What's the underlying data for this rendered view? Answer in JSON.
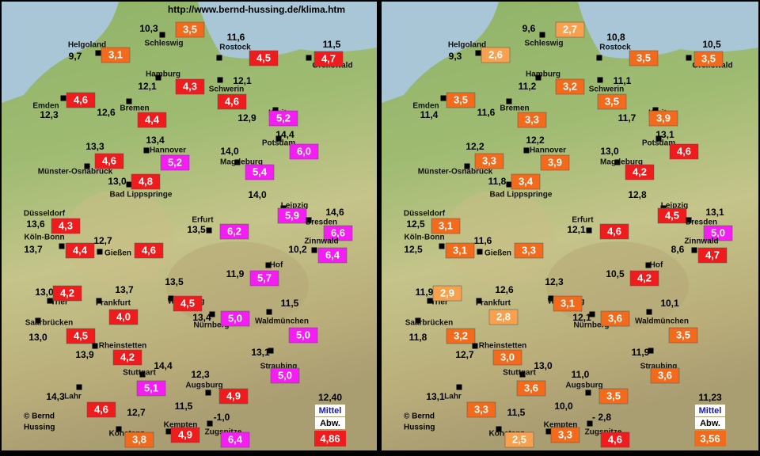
{
  "header": {
    "url": "http://www.bernd-hussing.de/klima.htm"
  },
  "panels": [
    {
      "stations": [
        {
          "name": "Schleswig",
          "temp": "10,3",
          "anomaly": "3,5",
          "color": "#f26b1d"
        },
        {
          "name": "Helgoland",
          "temp": "9,7",
          "anomaly": "3,1",
          "color": "#f26b1d"
        },
        {
          "name": "Rostock",
          "temp": "11,6",
          "anomaly": "4,5",
          "color": "#ee1c1c"
        },
        {
          "name": "Greifswald",
          "temp": "11,5",
          "anomaly": "4,7",
          "color": "#ee1c1c"
        },
        {
          "name": "Hamburg",
          "temp": "12,1",
          "anomaly": "4,3",
          "color": "#ee1c1c"
        },
        {
          "name": "Schwerin",
          "temp": "12,1",
          "anomaly": "4,6",
          "color": "#ee1c1c"
        },
        {
          "name": "Emden",
          "temp": "12,3",
          "anomaly": "4,6",
          "color": "#ee1c1c"
        },
        {
          "name": "Bremen",
          "temp": "12,6",
          "anomaly": "4,4",
          "color": "#ee1c1c"
        },
        {
          "name": "Kyritz",
          "temp": "12,9",
          "anomaly": "5,2",
          "color": "#f21ef2"
        },
        {
          "name": "Potsdam",
          "temp": "14,4",
          "anomaly": "6,0",
          "color": "#f21ef2"
        },
        {
          "name": "Hannover",
          "temp": "13,4",
          "anomaly": "5,2",
          "color": "#f21ef2"
        },
        {
          "name": "Münster-Osnabrück",
          "temp": "13,3",
          "anomaly": "4,6",
          "color": "#ee1c1c"
        },
        {
          "name": "Magdeburg",
          "temp": "14,0",
          "anomaly": "5,4",
          "color": "#f21ef2"
        },
        {
          "name": "Bad Lippspringe",
          "temp": "13,0",
          "anomaly": "4,8",
          "color": "#ee1c1c"
        },
        {
          "name": "Leipzig",
          "temp": "14,0",
          "anomaly": "5,9",
          "color": "#f21ef2"
        },
        {
          "name": "Dresden",
          "temp": "14,6",
          "anomaly": "6,6",
          "color": "#f21ef2"
        },
        {
          "name": "Düsseldorf",
          "temp": "13,6",
          "anomaly": "4,3",
          "color": "#ee1c1c"
        },
        {
          "name": "Erfurt",
          "temp": "13,5",
          "anomaly": "6,2",
          "color": "#f21ef2"
        },
        {
          "name": "Köln-Bonn",
          "temp": "13,7",
          "anomaly": "4,4",
          "color": "#ee1c1c"
        },
        {
          "name": "Gießen",
          "temp": "12,7",
          "anomaly": "4,6",
          "color": "#ee1c1c"
        },
        {
          "name": "Zinnwald",
          "temp": "10,2",
          "anomaly": "6,4",
          "color": "#f21ef2"
        },
        {
          "name": "Hof",
          "temp": "11,9",
          "anomaly": "5,7",
          "color": "#f21ef2"
        },
        {
          "name": "Trier",
          "temp": "13,0",
          "anomaly": "4,2",
          "color": "#ee1c1c"
        },
        {
          "name": "Frankfurt",
          "temp": "13,7",
          "anomaly": "4,0",
          "color": "#ee1c1c"
        },
        {
          "name": "Würzburg",
          "temp": "13,5",
          "anomaly": "4,5",
          "color": "#ee1c1c"
        },
        {
          "name": "Nürnberg",
          "temp": "13,4",
          "anomaly": "5,0",
          "color": "#f21ef2"
        },
        {
          "name": "Waldmünchen",
          "temp": "11,5",
          "anomaly": "5,0",
          "color": "#f21ef2"
        },
        {
          "name": "Saarbrücken",
          "temp": "13,0",
          "anomaly": "4,5",
          "color": "#ee1c1c"
        },
        {
          "name": "Rheinstetten",
          "temp": "13,9",
          "anomaly": "4,2",
          "color": "#ee1c1c"
        },
        {
          "name": "Stuttgart",
          "temp": "14,4",
          "anomaly": "5,1",
          "color": "#f21ef2"
        },
        {
          "name": "Straubing",
          "temp": "13,1",
          "anomaly": "5,0",
          "color": "#f21ef2"
        },
        {
          "name": "Augsburg",
          "temp": "12,3",
          "anomaly": "4,9",
          "color": "#ee1c1c"
        },
        {
          "name": "Lahr",
          "temp": "14,3",
          "anomaly": "4,6",
          "color": "#ee1c1c"
        },
        {
          "name": "Konstanz",
          "temp": "12,7",
          "anomaly": "3,8",
          "color": "#f26b1d"
        },
        {
          "name": "Kempten",
          "temp": "11,5",
          "anomaly": "4,9",
          "color": "#ee1c1c"
        },
        {
          "name": "Zugspitze",
          "temp": "-1,0",
          "anomaly": "6,4",
          "color": "#f21ef2"
        }
      ],
      "mean": {
        "temp": "12,40",
        "label": "Mittel",
        "abw_label": "Abw.",
        "anomaly": "4,86",
        "color": "#ee1c1c"
      },
      "credit": [
        "© Bernd",
        "Hussing"
      ]
    },
    {
      "stations": [
        {
          "name": "Schleswig",
          "temp": "9,6",
          "anomaly": "2,7",
          "color": "#f7a04e"
        },
        {
          "name": "Helgoland",
          "temp": "9,3",
          "anomaly": "2,6",
          "color": "#f7a04e"
        },
        {
          "name": "Rostock",
          "temp": "10,8",
          "anomaly": "3,5",
          "color": "#f26b1d"
        },
        {
          "name": "Greifswald",
          "temp": "10,5",
          "anomaly": "3,5",
          "color": "#f26b1d"
        },
        {
          "name": "Hamburg",
          "temp": "11,2",
          "anomaly": "3,2",
          "color": "#f26b1d"
        },
        {
          "name": "Schwerin",
          "temp": "11,1",
          "anomaly": "3,5",
          "color": "#f26b1d"
        },
        {
          "name": "Emden",
          "temp": "11,4",
          "anomaly": "3,5",
          "color": "#f26b1d"
        },
        {
          "name": "Bremen",
          "temp": "11,6",
          "anomaly": "3,3",
          "color": "#f26b1d"
        },
        {
          "name": "Kyritz",
          "temp": "11,7",
          "anomaly": "3,9",
          "color": "#f26b1d"
        },
        {
          "name": "Potsdam",
          "temp": "13,1",
          "anomaly": "4,6",
          "color": "#ee1c1c"
        },
        {
          "name": "Hannover",
          "temp": "12,2",
          "anomaly": "3,9",
          "color": "#f26b1d"
        },
        {
          "name": "Münster-Osnabrück",
          "temp": "12,2",
          "anomaly": "3,3",
          "color": "#f26b1d"
        },
        {
          "name": "Magdeburg",
          "temp": "13,0",
          "anomaly": "4,2",
          "color": "#ee1c1c"
        },
        {
          "name": "Bad Lippspringe",
          "temp": "11,8",
          "anomaly": "3,4",
          "color": "#f26b1d"
        },
        {
          "name": "Leipzig",
          "temp": "12,8",
          "anomaly": "4,5",
          "color": "#ee1c1c"
        },
        {
          "name": "Dresden",
          "temp": "13,1",
          "anomaly": "5,0",
          "color": "#f21ef2"
        },
        {
          "name": "Düsseldorf",
          "temp": "12,5",
          "anomaly": "3,1",
          "color": "#f26b1d"
        },
        {
          "name": "Erfurt",
          "temp": "12,1",
          "anomaly": "4,6",
          "color": "#ee1c1c"
        },
        {
          "name": "Köln-Bonn",
          "temp": "12,5",
          "anomaly": "3,1",
          "color": "#f26b1d"
        },
        {
          "name": "Gießen",
          "temp": "11,6",
          "anomaly": "3,3",
          "color": "#f26b1d"
        },
        {
          "name": "Zinnwald",
          "temp": "8,6",
          "anomaly": "4,7",
          "color": "#ee1c1c"
        },
        {
          "name": "Hof",
          "temp": "10,5",
          "anomaly": "4,2",
          "color": "#ee1c1c"
        },
        {
          "name": "Trier",
          "temp": "11,9",
          "anomaly": "2,9",
          "color": "#f7a04e"
        },
        {
          "name": "Frankfurt",
          "temp": "12,6",
          "anomaly": "2,8",
          "color": "#f7a04e"
        },
        {
          "name": "Würzburg",
          "temp": "12,3",
          "anomaly": "3,1",
          "color": "#f26b1d"
        },
        {
          "name": "Nürnberg",
          "temp": "12,1",
          "anomaly": "3,6",
          "color": "#f26b1d"
        },
        {
          "name": "Waldmünchen",
          "temp": "10,1",
          "anomaly": "3,5",
          "color": "#f26b1d"
        },
        {
          "name": "Saarbrücken",
          "temp": "11,8",
          "anomaly": "3,2",
          "color": "#f26b1d"
        },
        {
          "name": "Rheinstetten",
          "temp": "12,7",
          "anomaly": "3,0",
          "color": "#f26b1d"
        },
        {
          "name": "Stuttgart",
          "temp": "13,0",
          "anomaly": "3,6",
          "color": "#f26b1d"
        },
        {
          "name": "Straubing",
          "temp": "11,9",
          "anomaly": "3,6",
          "color": "#f26b1d"
        },
        {
          "name": "Augsburg",
          "temp": "11,0",
          "anomaly": "3,5",
          "color": "#f26b1d"
        },
        {
          "name": "Lahr",
          "temp": "13,1",
          "anomaly": "3,3",
          "color": "#f26b1d"
        },
        {
          "name": "Konstanz",
          "temp": "11,5",
          "anomaly": "2,5",
          "color": "#f7a04e"
        },
        {
          "name": "Kempten",
          "temp": "10,0",
          "anomaly": "3,3",
          "color": "#f26b1d"
        },
        {
          "name": "Zugspitze",
          "temp": "- 2,8",
          "anomaly": "4,6",
          "color": "#ee1c1c"
        }
      ],
      "mean": {
        "temp": "11,23",
        "label": "Mittel",
        "abw_label": "Abw.",
        "anomaly": "3,56",
        "color": "#f26b1d"
      },
      "credit": [
        "© Bernd",
        "Hussing"
      ]
    }
  ]
}
